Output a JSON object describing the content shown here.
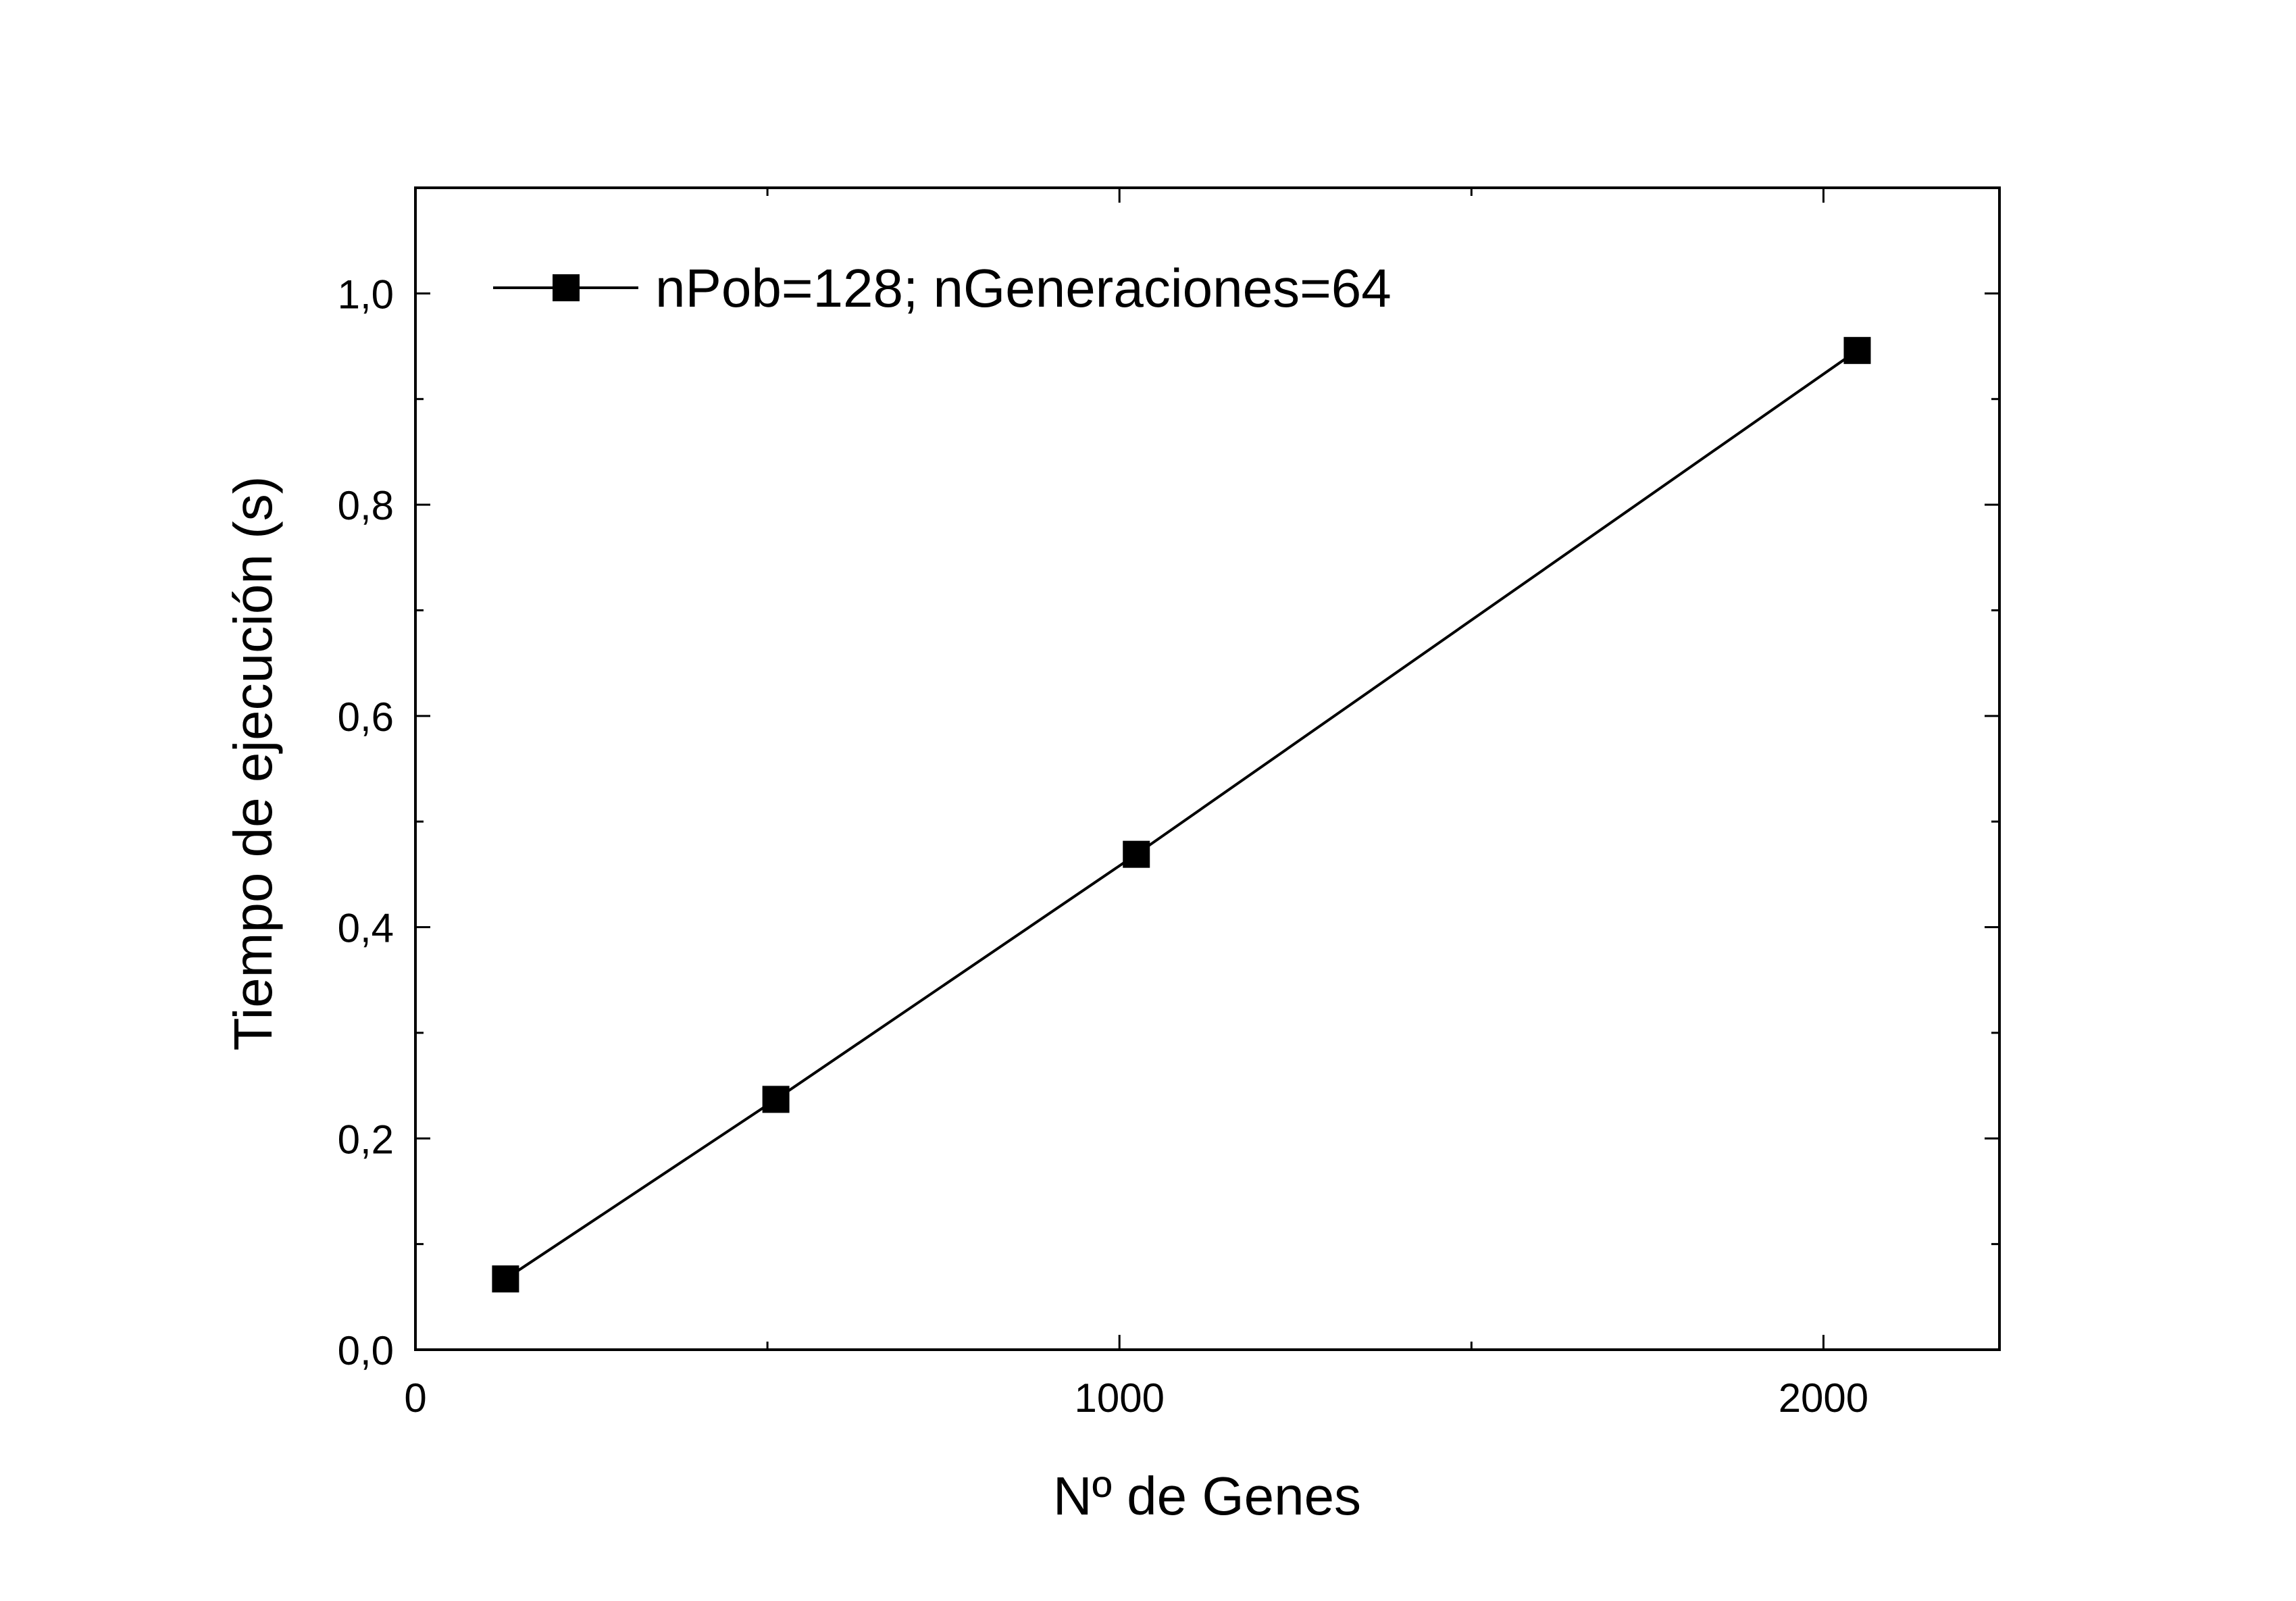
{
  "chart_data": {
    "type": "line",
    "title": "",
    "xlabel": "Nº de Genes",
    "ylabel": "Tiempo de ejecución (s)",
    "xlim": [
      0,
      2250
    ],
    "ylim": [
      0,
      1.1
    ],
    "x_ticks": [
      0,
      1000,
      2000
    ],
    "x_tick_labels": [
      "0",
      "1000",
      "2000"
    ],
    "x_minor_ticks": [
      500,
      1500
    ],
    "y_ticks": [
      0,
      0.2,
      0.4,
      0.6,
      0.8,
      1.0
    ],
    "y_tick_labels": [
      "0,0",
      "0,2",
      "0,4",
      "0,6",
      "0,8",
      "1,0"
    ],
    "y_minor_ticks": [
      0.1,
      0.3,
      0.5,
      0.7,
      0.9
    ],
    "grid": false,
    "legend_position": "top-left",
    "series": [
      {
        "name": "nPob=128; nGeneraciones=64",
        "marker": "square",
        "color": "#000000",
        "x": [
          128,
          512,
          1024,
          2048
        ],
        "y": [
          0.067,
          0.237,
          0.469,
          0.946
        ]
      }
    ]
  }
}
